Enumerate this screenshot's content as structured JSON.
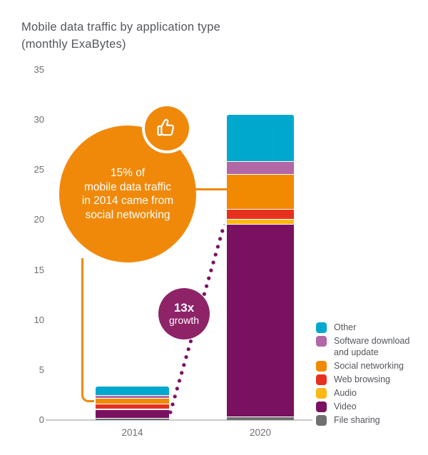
{
  "title": "Mobile data traffic by application type",
  "subtitle": "(monthly ExaBytes)",
  "chart_data": {
    "type": "bar",
    "subtype": "stacked",
    "categories": [
      "2014",
      "2020"
    ],
    "yticks": [
      0,
      5,
      10,
      15,
      20,
      25,
      30,
      35
    ],
    "ylim": [
      0,
      35
    ],
    "grid": false,
    "legend_position": "right",
    "series": [
      {
        "name": "Other",
        "color": "#00a8ce",
        "values": [
          0.85,
          4.6
        ]
      },
      {
        "name": "Software download and update",
        "color": "#b267a6",
        "values": [
          0.3,
          1.3
        ]
      },
      {
        "name": "Social networking",
        "color": "#f18a00",
        "values": [
          0.55,
          3.5
        ]
      },
      {
        "name": "Web browsing",
        "color": "#e6311f",
        "values": [
          0.5,
          1.0
        ]
      },
      {
        "name": "Audio",
        "color": "#fcb813",
        "values": [
          0.1,
          0.5
        ]
      },
      {
        "name": "Video",
        "color": "#7a1060",
        "values": [
          0.85,
          19.25
        ]
      },
      {
        "name": "File sharing",
        "color": "#6f6f6f",
        "values": [
          0.2,
          0.35
        ]
      }
    ]
  },
  "annotations": {
    "social_bubble": {
      "lines": [
        "15% of",
        "mobile data traffic",
        "in 2014 came from",
        "social networking"
      ],
      "color": "#f0890a",
      "icon": "thumbs-up"
    },
    "growth_bubble": {
      "value": "13x",
      "label": "growth",
      "color": "#8e2368"
    },
    "dotted_line_color": "#7a1060",
    "connector_color": "#f0890a"
  }
}
